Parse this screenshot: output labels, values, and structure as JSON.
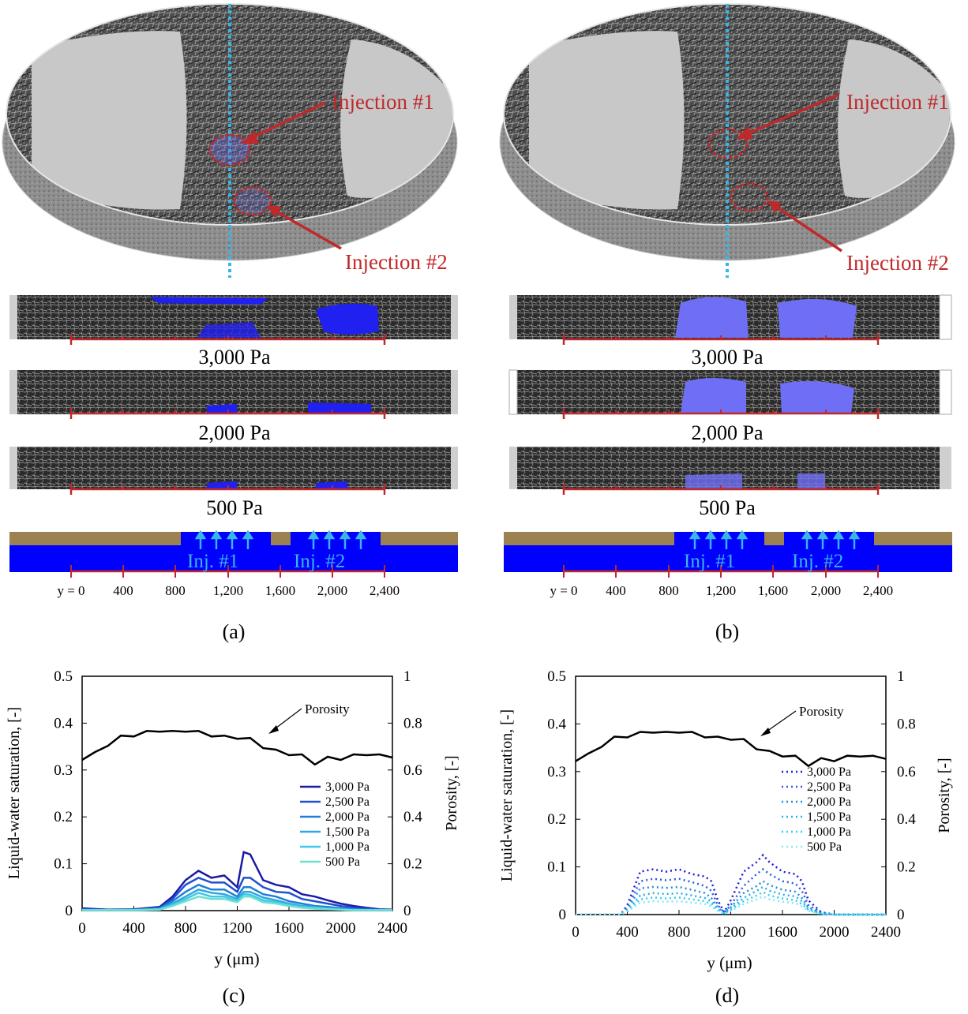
{
  "panels": {
    "a": {
      "label": "(a)",
      "injection1": "Injection #1",
      "injection2": "Injection #2"
    },
    "b": {
      "label": "(b)",
      "injection1": "Injection #1",
      "injection2": "Injection #2"
    },
    "c": {
      "label": "(c)"
    },
    "d": {
      "label": "(d)"
    }
  },
  "pressure_labels": [
    "3,000 Pa",
    "2,000 Pa",
    "500 Pa"
  ],
  "schematic": {
    "inj1": "Inj. #1",
    "inj2": "Inj. #2",
    "axis_ticks": [
      "y = 0",
      "400",
      "800",
      "1,200",
      "1,600",
      "2,000",
      "2,400"
    ]
  },
  "colors": {
    "gold": "#9c8250",
    "blue": "#0000ff",
    "cyan": "#38b6e8",
    "red": "#c0282a",
    "water": "#6f6ff5"
  },
  "chart_data": [
    {
      "type": "line",
      "panel": "c",
      "xlabel": "y (μm)",
      "ylabel_left": "Liquid-water saturation, [-]",
      "ylabel_right": "Porosity, [-]",
      "xlim": [
        0,
        2400
      ],
      "ylim_left": [
        0,
        0.5
      ],
      "ylim_right": [
        0,
        1
      ],
      "x_ticks": [
        "0",
        "400",
        "800",
        "1200",
        "1600",
        "2000",
        "2400"
      ],
      "y_ticks_left": [
        "0",
        "0.1",
        "0.2",
        "0.3",
        "0.4",
        "0.5"
      ],
      "y_ticks_right": [
        "0",
        "0.2",
        "0.4",
        "0.6",
        "0.8",
        "1"
      ],
      "annotation": "Porosity",
      "porosity": {
        "x": [
          0,
          100,
          200,
          300,
          400,
          500,
          600,
          700,
          800,
          900,
          1000,
          1100,
          1200,
          1300,
          1400,
          1500,
          1600,
          1700,
          1800,
          1900,
          2000,
          2100,
          2200,
          2300,
          2400
        ],
        "values": [
          0.65,
          0.67,
          0.71,
          0.74,
          0.75,
          0.76,
          0.77,
          0.76,
          0.77,
          0.76,
          0.75,
          0.74,
          0.74,
          0.73,
          0.7,
          0.68,
          0.67,
          0.66,
          0.63,
          0.65,
          0.65,
          0.66,
          0.67,
          0.66,
          0.66
        ]
      },
      "saturation_x": [
        0,
        200,
        400,
        600,
        700,
        800,
        900,
        1000,
        1100,
        1200,
        1250,
        1300,
        1400,
        1500,
        1600,
        1700,
        1800,
        1900,
        2000,
        2100,
        2200,
        2300,
        2400
      ],
      "series": [
        {
          "name": "3,000 Pa",
          "color": "#1a1aa8",
          "values": [
            0.005,
            0.002,
            0.003,
            0.008,
            0.03,
            0.065,
            0.085,
            0.07,
            0.075,
            0.05,
            0.125,
            0.12,
            0.065,
            0.055,
            0.05,
            0.035,
            0.03,
            0.022,
            0.015,
            0.01,
            0.006,
            0.003,
            0.002
          ]
        },
        {
          "name": "2,500 Pa",
          "color": "#2050d0",
          "values": [
            0.003,
            0.001,
            0.002,
            0.006,
            0.025,
            0.055,
            0.07,
            0.06,
            0.06,
            0.04,
            0.07,
            0.07,
            0.05,
            0.04,
            0.038,
            0.025,
            0.02,
            0.015,
            0.01,
            0.006,
            0.004,
            0.002,
            0.001
          ]
        },
        {
          "name": "2,000 Pa",
          "color": "#1f7fd8",
          "values": [
            0.002,
            0.001,
            0.002,
            0.005,
            0.02,
            0.04,
            0.055,
            0.045,
            0.045,
            0.03,
            0.05,
            0.05,
            0.035,
            0.03,
            0.02,
            0.015,
            0.01,
            0.008,
            0.005,
            0.003,
            0.002,
            0.001,
            0.001
          ]
        },
        {
          "name": "1,500 Pa",
          "color": "#2fa8e0",
          "values": [
            0.001,
            0.001,
            0.001,
            0.004,
            0.015,
            0.03,
            0.045,
            0.038,
            0.035,
            0.025,
            0.04,
            0.04,
            0.028,
            0.022,
            0.015,
            0.01,
            0.008,
            0.005,
            0.003,
            0.002,
            0.001,
            0.001,
            0.001
          ]
        },
        {
          "name": "1,000 Pa",
          "color": "#3cc8e8",
          "values": [
            0.001,
            0.001,
            0.001,
            0.003,
            0.012,
            0.025,
            0.038,
            0.03,
            0.03,
            0.02,
            0.035,
            0.034,
            0.022,
            0.018,
            0.012,
            0.008,
            0.006,
            0.004,
            0.002,
            0.001,
            0.001,
            0.001,
            0.001
          ]
        },
        {
          "name": "500 Pa",
          "color": "#6ee0d0",
          "values": [
            0.001,
            0.001,
            0.001,
            0.002,
            0.01,
            0.02,
            0.03,
            0.025,
            0.025,
            0.018,
            0.03,
            0.03,
            0.018,
            0.015,
            0.01,
            0.006,
            0.004,
            0.003,
            0.002,
            0.001,
            0.001,
            0.001,
            0.001
          ]
        }
      ],
      "legend": "middle-right"
    },
    {
      "type": "line",
      "panel": "d",
      "xlabel": "y (μm)",
      "ylabel_left": "Liquid-water saturation, [-]",
      "ylabel_right": "Porosity, [-]",
      "xlim": [
        0,
        2400
      ],
      "ylim_left": [
        0,
        0.5
      ],
      "ylim_right": [
        0,
        1
      ],
      "x_ticks": [
        "0",
        "400",
        "800",
        "1200",
        "1600",
        "2000",
        "2400"
      ],
      "y_ticks_left": [
        "0",
        "0.1",
        "0.2",
        "0.3",
        "0.4",
        "0.5"
      ],
      "y_ticks_right": [
        "0",
        "0.2",
        "0.4",
        "0.6",
        "0.8",
        "1"
      ],
      "annotation": "Porosity",
      "porosity": {
        "x": [
          0,
          100,
          200,
          300,
          400,
          500,
          600,
          700,
          800,
          900,
          1000,
          1100,
          1200,
          1300,
          1400,
          1500,
          1600,
          1700,
          1800,
          1900,
          2000,
          2100,
          2200,
          2300,
          2400
        ],
        "values": [
          0.65,
          0.67,
          0.71,
          0.74,
          0.75,
          0.76,
          0.77,
          0.76,
          0.77,
          0.76,
          0.75,
          0.74,
          0.74,
          0.73,
          0.7,
          0.68,
          0.67,
          0.66,
          0.63,
          0.65,
          0.65,
          0.66,
          0.67,
          0.66,
          0.66
        ]
      },
      "saturation_x": [
        0,
        300,
        350,
        400,
        500,
        600,
        700,
        800,
        900,
        1000,
        1050,
        1100,
        1150,
        1200,
        1300,
        1400,
        1450,
        1500,
        1600,
        1700,
        1750,
        1800,
        1900,
        2000,
        2400
      ],
      "series": [
        {
          "name": "3,000 Pa",
          "color": "#1a1ad8",
          "values": [
            0,
            0,
            0,
            0.02,
            0.09,
            0.095,
            0.09,
            0.095,
            0.085,
            0.08,
            0.07,
            0.03,
            0.005,
            0.03,
            0.09,
            0.11,
            0.125,
            0.11,
            0.09,
            0.085,
            0.07,
            0.03,
            0.005,
            0,
            0
          ]
        },
        {
          "name": "2,500 Pa",
          "color": "#2a5ae0",
          "values": [
            0,
            0,
            0,
            0.015,
            0.07,
            0.075,
            0.072,
            0.075,
            0.068,
            0.06,
            0.05,
            0.02,
            0.004,
            0.02,
            0.06,
            0.085,
            0.095,
            0.085,
            0.07,
            0.065,
            0.05,
            0.02,
            0.004,
            0,
            0
          ]
        },
        {
          "name": "2,000 Pa",
          "color": "#1f8ce0",
          "values": [
            0,
            0,
            0,
            0.012,
            0.055,
            0.058,
            0.056,
            0.058,
            0.052,
            0.045,
            0.035,
            0.015,
            0.003,
            0.015,
            0.045,
            0.06,
            0.07,
            0.062,
            0.052,
            0.048,
            0.035,
            0.015,
            0.003,
            0,
            0
          ]
        },
        {
          "name": "1,500 Pa",
          "color": "#27b0e8",
          "values": [
            0,
            0,
            0,
            0.01,
            0.04,
            0.045,
            0.043,
            0.045,
            0.04,
            0.035,
            0.028,
            0.012,
            0.002,
            0.012,
            0.035,
            0.05,
            0.058,
            0.05,
            0.042,
            0.038,
            0.028,
            0.012,
            0.002,
            0,
            0
          ]
        },
        {
          "name": "1,000 Pa",
          "color": "#30d0f0",
          "values": [
            0,
            0,
            0,
            0.008,
            0.032,
            0.036,
            0.034,
            0.036,
            0.032,
            0.028,
            0.022,
            0.01,
            0.002,
            0.01,
            0.028,
            0.04,
            0.047,
            0.04,
            0.034,
            0.03,
            0.022,
            0.01,
            0.002,
            0,
            0
          ]
        },
        {
          "name": "500 Pa",
          "color": "#80e8f8",
          "values": [
            0,
            0,
            0,
            0.006,
            0.025,
            0.028,
            0.027,
            0.028,
            0.025,
            0.022,
            0.017,
            0.008,
            0.001,
            0.008,
            0.022,
            0.032,
            0.038,
            0.032,
            0.027,
            0.024,
            0.017,
            0.008,
            0.001,
            0,
            0
          ]
        }
      ],
      "legend": "middle-right"
    }
  ]
}
